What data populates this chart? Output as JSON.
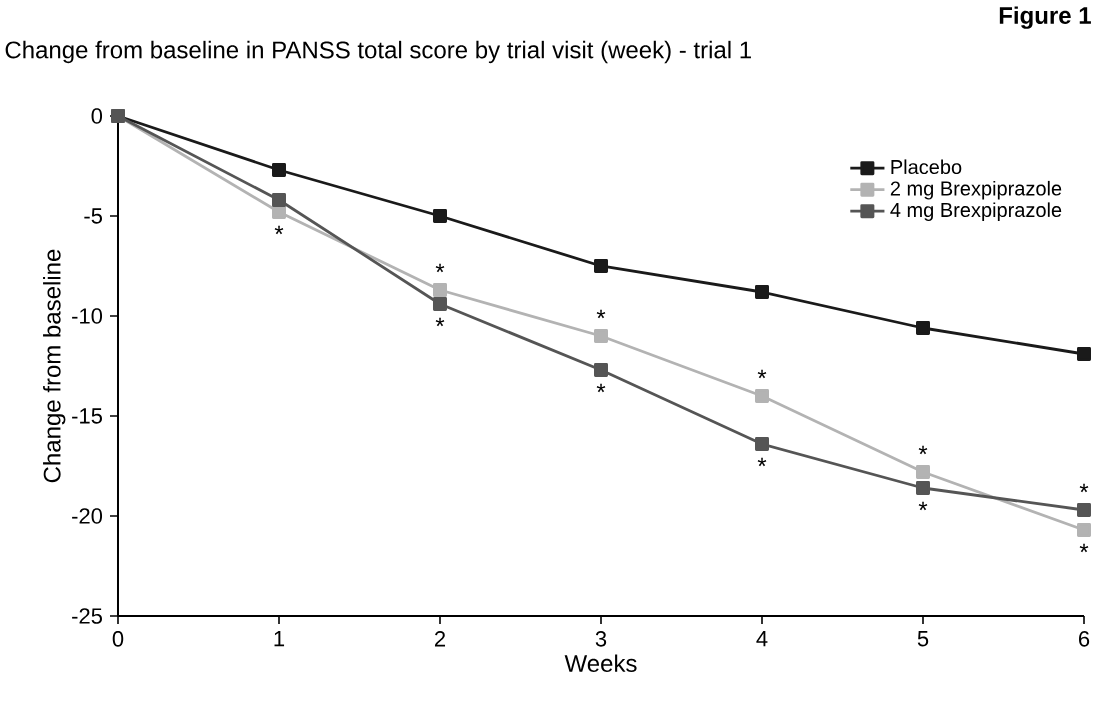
{
  "chart_data": {
    "type": "line",
    "title": "Change from baseline in PANSS total score by trial visit (week) - trial 1",
    "xlabel": "Weeks",
    "ylabel": "Change from baseline",
    "x": [
      0,
      1,
      2,
      3,
      4,
      5,
      6
    ],
    "series": [
      {
        "name": "Placebo",
        "color": "#1a1a1a",
        "values": [
          0,
          -2.7,
          -5.0,
          -7.5,
          -8.8,
          -10.6,
          -11.9
        ]
      },
      {
        "name": "2 mg Brexpiprazole",
        "color": "#b3b3b3",
        "values": [
          0,
          -4.8,
          -8.7,
          -11.0,
          -14.0,
          -17.8,
          -20.7
        ]
      },
      {
        "name": "4 mg Brexpiprazole",
        "color": "#555555",
        "values": [
          0,
          -4.2,
          -9.4,
          -12.7,
          -16.4,
          -18.6,
          -19.7
        ]
      }
    ],
    "xlim": [
      0,
      6
    ],
    "ylim": [
      -25,
      0
    ],
    "xticks": [
      0,
      1,
      2,
      3,
      4,
      5,
      6
    ],
    "yticks": [
      -25,
      -20,
      -15,
      -10,
      -5,
      0
    ],
    "legend": "top right",
    "marker": "square",
    "line_style": "solid",
    "grid": false,
    "annotations": [
      "Figure 1",
      {
        "text": "*",
        "x": 1,
        "y": -4.8
      },
      {
        "text": "*",
        "x": 2,
        "y": -8.7
      },
      {
        "text": "*",
        "x": 2,
        "y": -9.4
      },
      {
        "text": "*",
        "x": 3,
        "y": -11.0
      },
      {
        "text": "*",
        "x": 3,
        "y": -12.7
      },
      {
        "text": "*",
        "x": 4,
        "y": -14.0
      },
      {
        "text": "*",
        "x": 4,
        "y": -16.4
      },
      {
        "text": "*",
        "x": 5,
        "y": -17.8
      },
      {
        "text": "*",
        "x": 5,
        "y": -18.6
      },
      {
        "text": "*",
        "x": 6,
        "y": -19.7
      },
      {
        "text": "*",
        "x": 6,
        "y": -20.7
      }
    ]
  }
}
